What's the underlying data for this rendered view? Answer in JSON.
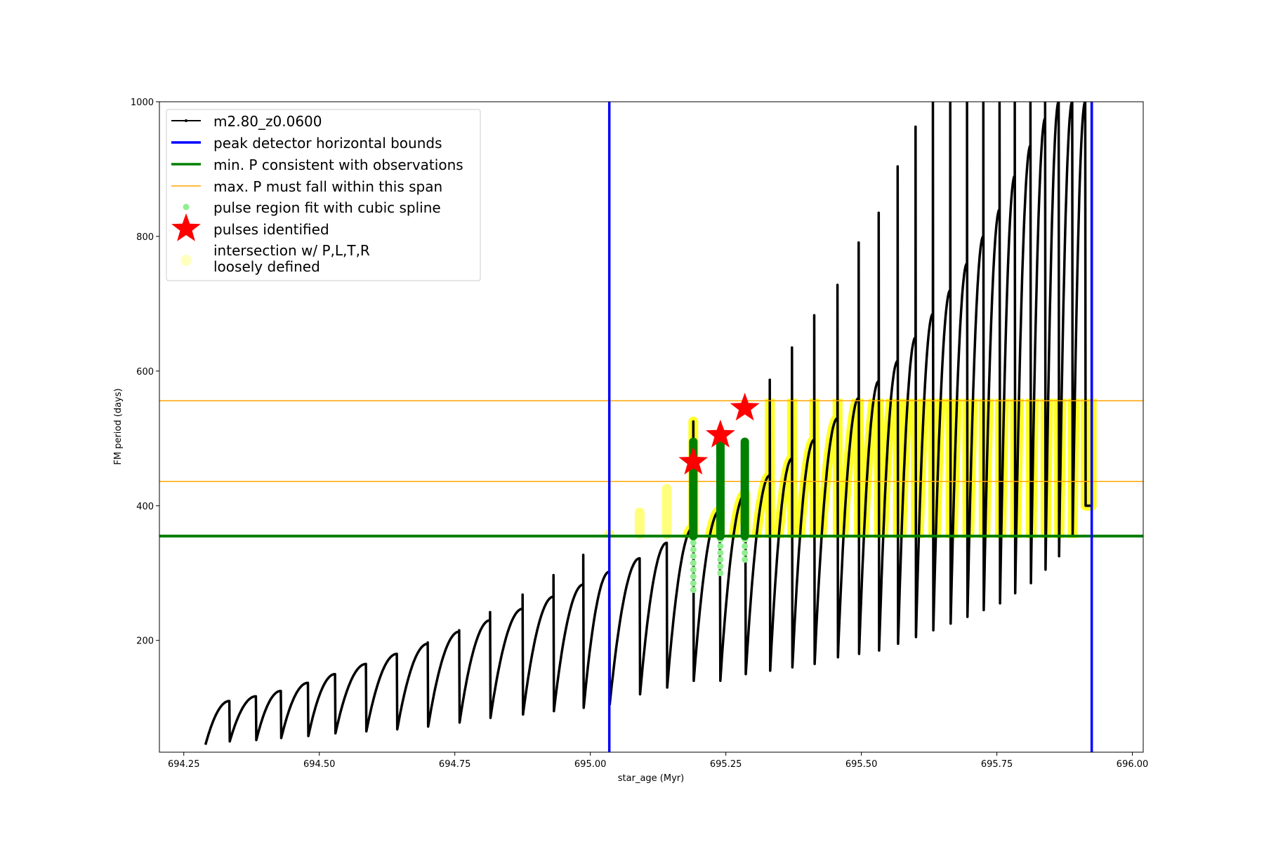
{
  "chart_data": {
    "type": "line",
    "title": "",
    "xlabel": "star_age (Myr)",
    "ylabel": "FM period (days)",
    "xlim": [
      694.205,
      696.02
    ],
    "ylim": [
      34,
      1000
    ],
    "xticks": [
      "694.25",
      "694.50",
      "694.75",
      "695.00",
      "695.25",
      "695.50",
      "695.75",
      "696.00"
    ],
    "yticks": [
      "200",
      "400",
      "600",
      "800",
      "1000"
    ],
    "grid": false,
    "legend_position": "upper-left",
    "legend": [
      {
        "label": "m2.80_z0.0600",
        "marker": "line-dot",
        "color": "#000000"
      },
      {
        "label": "peak detector horizontal bounds",
        "marker": "line",
        "color": "#0000ff"
      },
      {
        "label": "min. P consistent with observations",
        "marker": "line",
        "color": "#008000"
      },
      {
        "label": "max. P must fall within this span",
        "marker": "thin-line",
        "color": "#ffa500"
      },
      {
        "label": "pulse region fit with cubic spline",
        "marker": "dot",
        "color": "#90ee90"
      },
      {
        "label": "pulses identified",
        "marker": "star",
        "color": "#ff0000"
      },
      {
        "label": "intersection w/ P,L,T,R",
        "label2": "loosely defined",
        "marker": "circle",
        "color": "#ffffc0"
      }
    ],
    "series_start": {
      "age": 694.29,
      "period": 45
    },
    "series_end_age": 695.925,
    "pulses_columns": [
      "drop_age_Myr",
      "peak_period",
      "next_min_period",
      "spike_period"
    ],
    "pulses": [
      [
        694.334,
        110,
        50,
        110
      ],
      [
        694.383,
        117,
        52,
        117
      ],
      [
        694.429,
        125,
        55,
        125
      ],
      [
        694.479,
        137,
        58,
        137
      ],
      [
        694.529,
        150,
        62,
        150
      ],
      [
        694.586,
        165,
        65,
        165
      ],
      [
        694.643,
        180,
        68,
        180
      ],
      [
        694.7,
        195,
        72,
        197
      ],
      [
        694.758,
        213,
        78,
        215
      ],
      [
        694.815,
        230,
        85,
        242
      ],
      [
        694.875,
        247,
        90,
        268
      ],
      [
        694.932,
        265,
        95,
        297
      ],
      [
        694.987,
        283,
        100,
        327
      ],
      [
        695.035,
        302,
        105,
        302
      ],
      [
        695.091,
        322,
        120,
        322
      ],
      [
        695.141,
        345,
        130,
        345
      ],
      [
        695.19,
        368,
        140,
        525
      ],
      [
        695.239,
        393,
        140,
        393
      ],
      [
        695.286,
        418,
        150,
        418
      ],
      [
        695.331,
        445,
        155,
        587
      ],
      [
        695.372,
        470,
        160,
        635
      ],
      [
        695.413,
        498,
        165,
        683
      ],
      [
        695.456,
        530,
        175,
        728
      ],
      [
        695.495,
        560,
        180,
        791
      ],
      [
        695.532,
        585,
        185,
        835
      ],
      [
        695.567,
        615,
        195,
        904
      ],
      [
        695.6,
        650,
        205,
        963
      ],
      [
        695.632,
        685,
        215,
        1000
      ],
      [
        695.664,
        720,
        225,
        1000
      ],
      [
        695.695,
        760,
        235,
        1000
      ],
      [
        695.725,
        800,
        245,
        1000
      ],
      [
        695.755,
        840,
        255,
        1000
      ],
      [
        695.783,
        890,
        270,
        1000
      ],
      [
        695.812,
        935,
        285,
        1000
      ],
      [
        695.839,
        975,
        305,
        1000
      ],
      [
        695.864,
        1000,
        325,
        1000
      ],
      [
        695.889,
        1000,
        355,
        1000
      ],
      [
        695.913,
        1000,
        400,
        1000
      ]
    ],
    "peak_detector_bounds": [
      695.035,
      695.925
    ],
    "min_period_observed": 355,
    "max_period_span": [
      436,
      556
    ],
    "pulses_identified": [
      {
        "age": 695.19,
        "period": 465
      },
      {
        "age": 695.24,
        "period": 505
      },
      {
        "age": 695.285,
        "period": 545
      }
    ],
    "spline_fit_regions": [
      {
        "age": 695.19,
        "fit_range": [
          355,
          495
        ],
        "dots_range": [
          275,
          355
        ]
      },
      {
        "age": 695.24,
        "fit_range": [
          355,
          495
        ],
        "dots_range": [
          300,
          355
        ]
      },
      {
        "age": 695.285,
        "fit_range": [
          355,
          495
        ],
        "dots_range": [
          320,
          355
        ]
      }
    ],
    "loosely_defined_markers": [
      {
        "age": 695.035,
        "range": [
          358,
          358
        ]
      },
      {
        "age": 695.091,
        "range": [
          358,
          390
        ]
      },
      {
        "age": 695.141,
        "range": [
          358,
          425
        ]
      }
    ],
    "loosely_defined_age_from": 695.17
  }
}
